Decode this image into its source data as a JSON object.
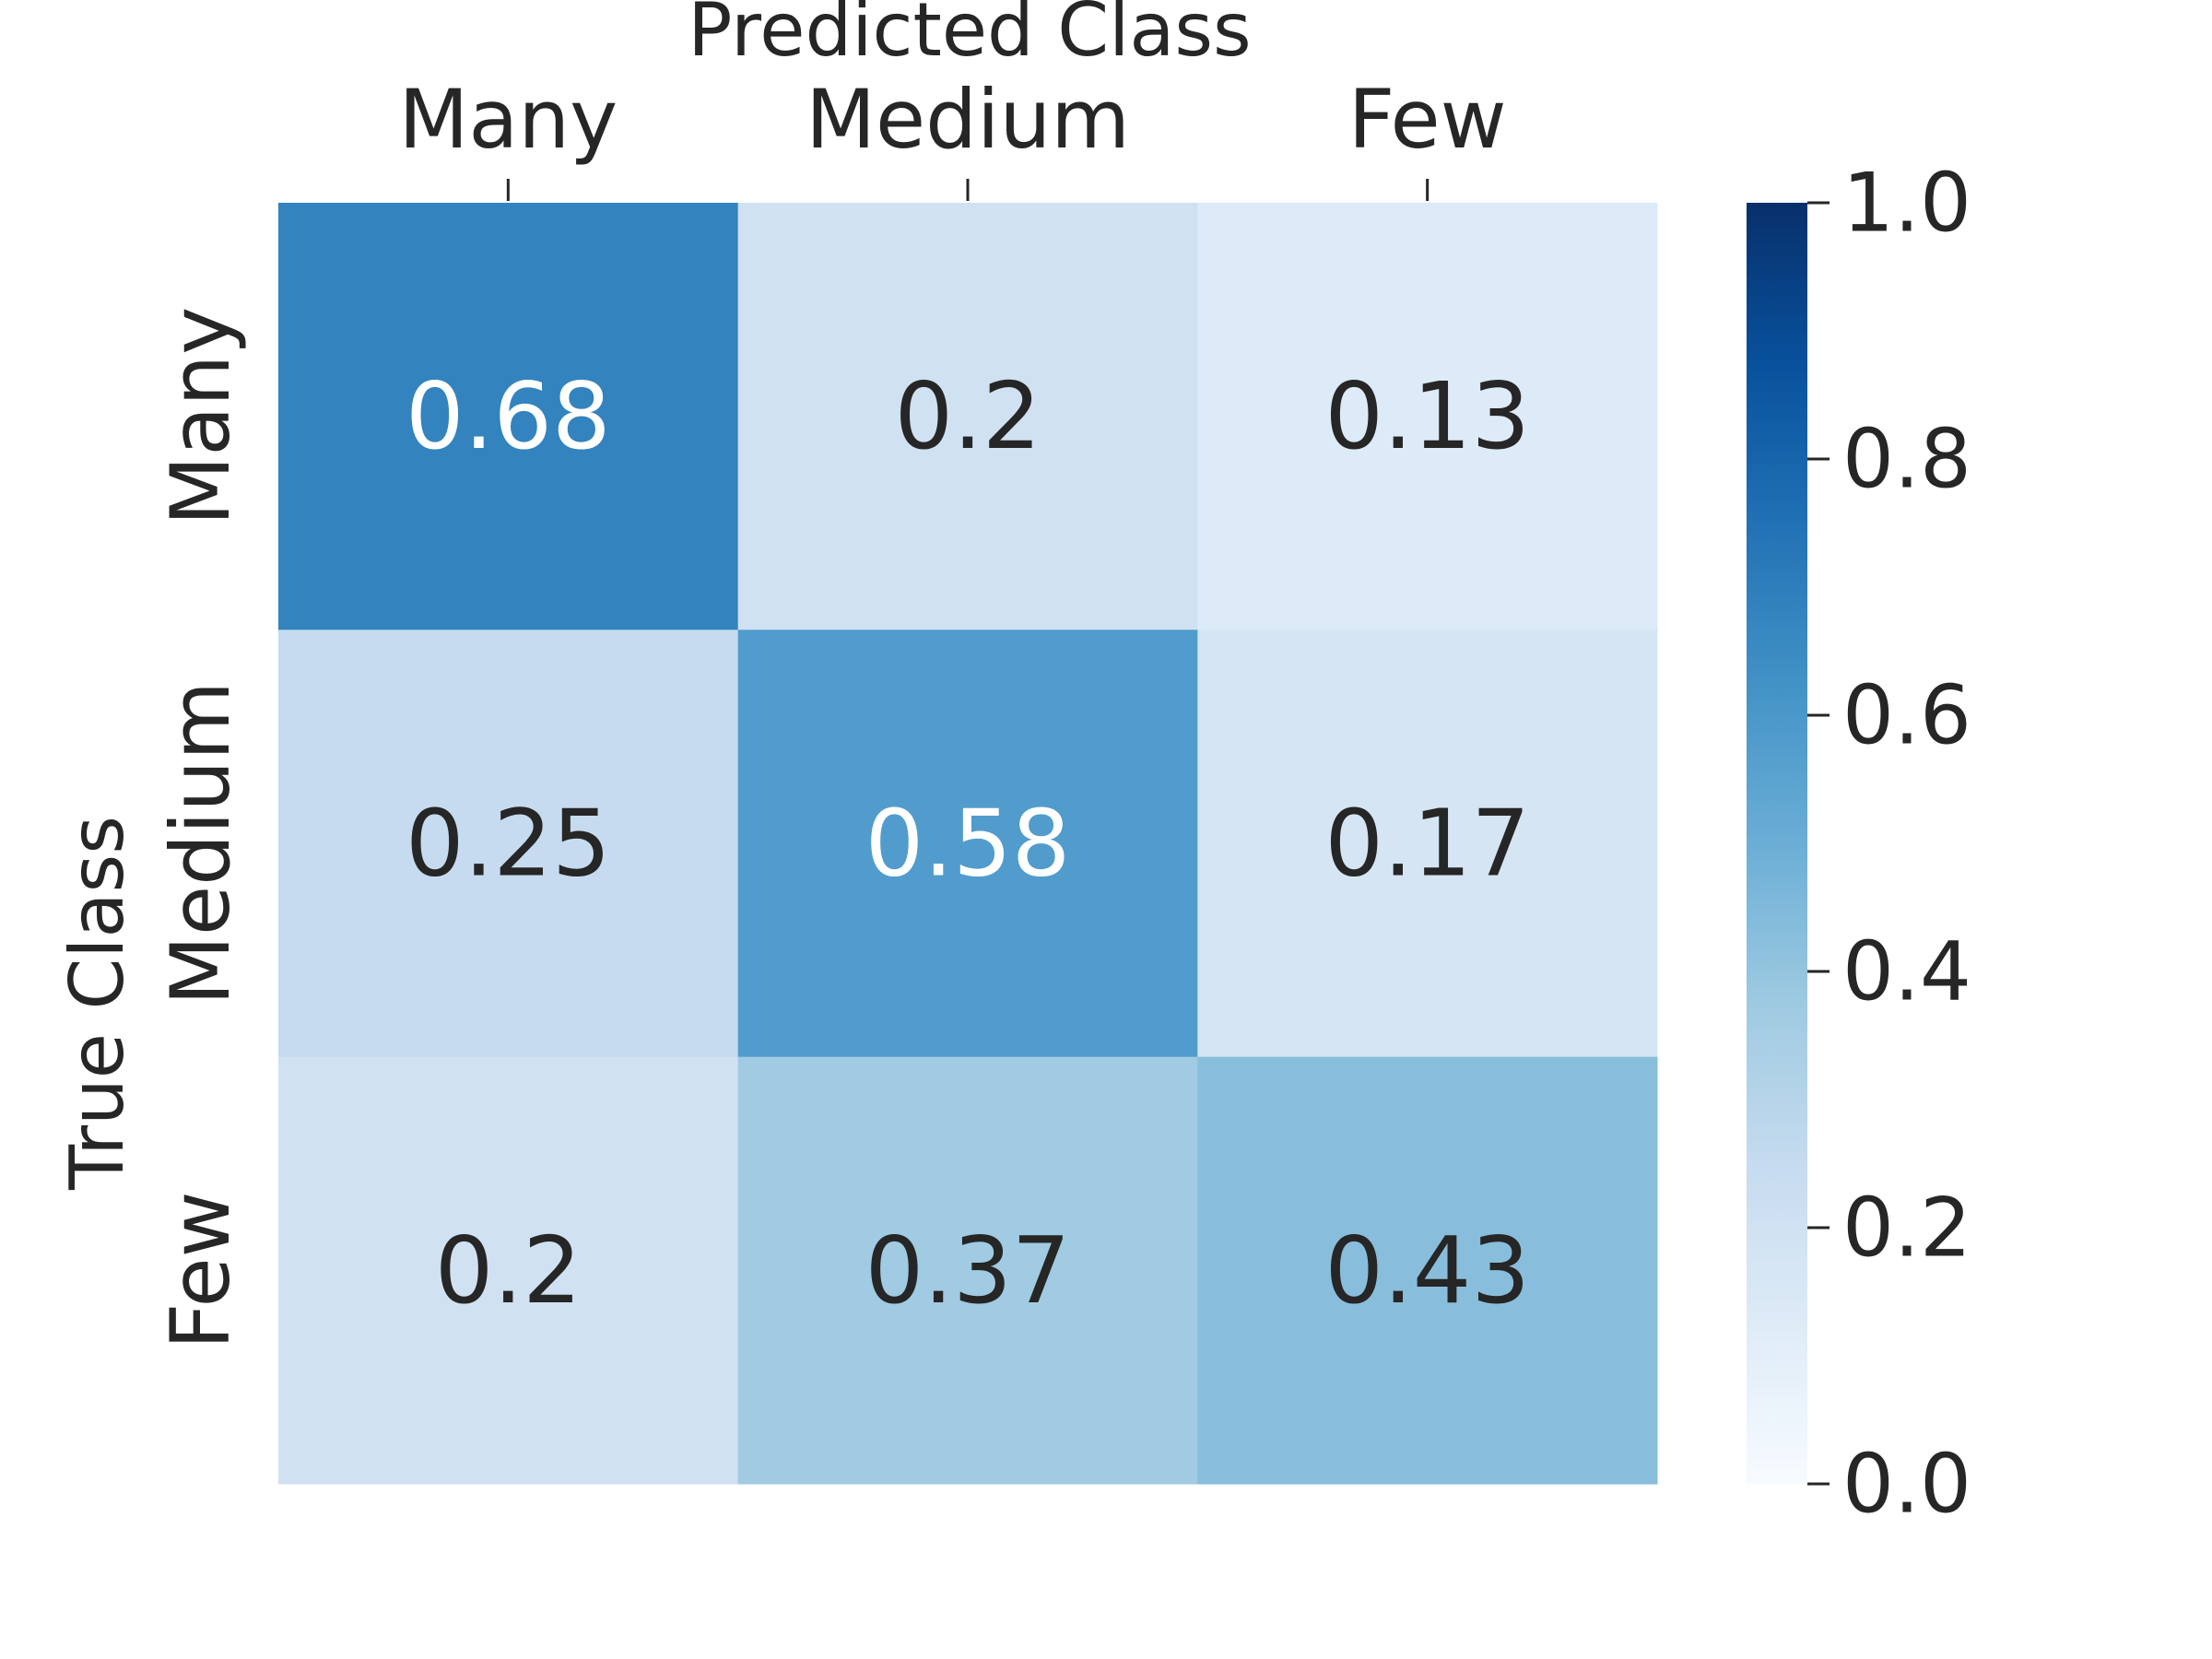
{
  "chart_data": {
    "type": "heatmap",
    "title": "",
    "xlabel": "Predicted Class",
    "ylabel": "True Class",
    "x_categories": [
      "Many",
      "Medium",
      "Few"
    ],
    "y_categories": [
      "Many",
      "Medium",
      "Few"
    ],
    "values": [
      [
        0.68,
        0.2,
        0.13
      ],
      [
        0.25,
        0.58,
        0.17
      ],
      [
        0.2,
        0.37,
        0.43
      ]
    ],
    "cell_labels": [
      [
        "0.68",
        "0.2",
        "0.13"
      ],
      [
        "0.25",
        "0.58",
        "0.17"
      ],
      [
        "0.2",
        "0.37",
        "0.43"
      ]
    ],
    "colormap": "Blues",
    "color_range": [
      0,
      1
    ],
    "colorbar_ticks": [
      {
        "value": 0.0,
        "label": "0.0"
      },
      {
        "value": 0.2,
        "label": "0.2"
      },
      {
        "value": 0.4,
        "label": "0.4"
      },
      {
        "value": 0.6,
        "label": "0.6"
      },
      {
        "value": 0.8,
        "label": "0.8"
      },
      {
        "value": 1.0,
        "label": "1.0"
      }
    ],
    "x_axis_position": "top",
    "colorbar_position": "right"
  }
}
